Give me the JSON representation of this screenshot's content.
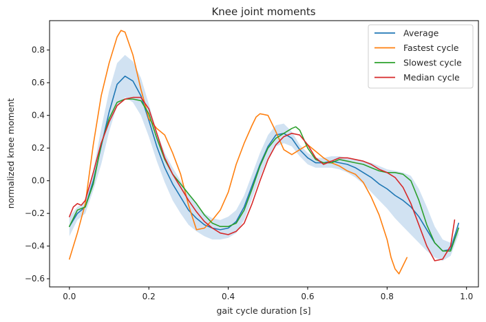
{
  "chart_data": {
    "type": "line",
    "title": "Knee joint moments",
    "xlabel": "gait cycle duration [s]",
    "ylabel": "normalized knee moment",
    "xlim": [
      -0.05,
      1.03
    ],
    "ylim": [
      -0.65,
      0.98
    ],
    "xticks": [
      "0.0",
      "0.2",
      "0.4",
      "0.6",
      "0.8",
      "1.0"
    ],
    "yticks": [
      "−0.6",
      "−0.4",
      "−0.2",
      "0.0",
      "0.2",
      "0.4",
      "0.6",
      "0.8"
    ],
    "grid": false,
    "legend_placement": "top-right",
    "band": {
      "color": "#c6dbef",
      "x": [
        0.0,
        0.02,
        0.04,
        0.06,
        0.08,
        0.1,
        0.12,
        0.14,
        0.16,
        0.18,
        0.2,
        0.22,
        0.24,
        0.26,
        0.28,
        0.3,
        0.32,
        0.34,
        0.36,
        0.38,
        0.4,
        0.42,
        0.44,
        0.46,
        0.48,
        0.5,
        0.52,
        0.54,
        0.56,
        0.58,
        0.6,
        0.62,
        0.64,
        0.66,
        0.68,
        0.7,
        0.72,
        0.74,
        0.76,
        0.78,
        0.8,
        0.82,
        0.84,
        0.86,
        0.88,
        0.9,
        0.92,
        0.94,
        0.96,
        0.98
      ],
      "upper": [
        -0.22,
        -0.16,
        -0.13,
        0.06,
        0.32,
        0.55,
        0.72,
        0.77,
        0.73,
        0.63,
        0.47,
        0.3,
        0.17,
        0.08,
        0.0,
        -0.08,
        -0.14,
        -0.2,
        -0.23,
        -0.24,
        -0.22,
        -0.18,
        -0.09,
        0.04,
        0.17,
        0.28,
        0.34,
        0.35,
        0.3,
        0.22,
        0.17,
        0.14,
        0.14,
        0.15,
        0.15,
        0.14,
        0.13,
        0.12,
        0.11,
        0.09,
        0.07,
        0.06,
        0.05,
        0.03,
        -0.05,
        -0.16,
        -0.28,
        -0.36,
        -0.38,
        -0.27
      ],
      "lower": [
        -0.34,
        -0.24,
        -0.2,
        -0.06,
        0.1,
        0.3,
        0.46,
        0.51,
        0.48,
        0.4,
        0.27,
        0.12,
        -0.01,
        -0.12,
        -0.2,
        -0.27,
        -0.31,
        -0.34,
        -0.36,
        -0.36,
        -0.35,
        -0.32,
        -0.24,
        -0.11,
        0.02,
        0.14,
        0.21,
        0.23,
        0.21,
        0.15,
        0.1,
        0.08,
        0.08,
        0.08,
        0.07,
        0.05,
        0.02,
        -0.02,
        -0.07,
        -0.12,
        -0.17,
        -0.23,
        -0.28,
        -0.33,
        -0.38,
        -0.43,
        -0.47,
        -0.49,
        -0.46,
        -0.33
      ]
    },
    "series": [
      {
        "name": "Average",
        "color": "#1f77b4",
        "x": [
          0.0,
          0.02,
          0.04,
          0.06,
          0.08,
          0.1,
          0.12,
          0.14,
          0.16,
          0.18,
          0.2,
          0.22,
          0.24,
          0.26,
          0.28,
          0.3,
          0.32,
          0.34,
          0.36,
          0.38,
          0.4,
          0.42,
          0.44,
          0.46,
          0.48,
          0.5,
          0.52,
          0.54,
          0.56,
          0.58,
          0.6,
          0.62,
          0.64,
          0.66,
          0.68,
          0.7,
          0.72,
          0.74,
          0.76,
          0.78,
          0.8,
          0.82,
          0.84,
          0.86,
          0.88,
          0.9,
          0.92,
          0.94,
          0.96,
          0.98
        ],
        "y": [
          -0.28,
          -0.2,
          -0.16,
          0.0,
          0.21,
          0.42,
          0.59,
          0.64,
          0.61,
          0.52,
          0.37,
          0.21,
          0.08,
          -0.02,
          -0.1,
          -0.18,
          -0.23,
          -0.27,
          -0.29,
          -0.3,
          -0.29,
          -0.25,
          -0.16,
          -0.03,
          0.1,
          0.21,
          0.28,
          0.29,
          0.26,
          0.19,
          0.14,
          0.11,
          0.11,
          0.12,
          0.11,
          0.1,
          0.08,
          0.05,
          0.02,
          -0.02,
          -0.05,
          -0.09,
          -0.12,
          -0.16,
          -0.22,
          -0.3,
          -0.38,
          -0.43,
          -0.42,
          -0.26
        ]
      },
      {
        "name": "Fastest cycle",
        "color": "#ff7f0e",
        "x": [
          0.0,
          0.02,
          0.04,
          0.06,
          0.08,
          0.1,
          0.12,
          0.13,
          0.14,
          0.16,
          0.18,
          0.2,
          0.22,
          0.24,
          0.26,
          0.28,
          0.3,
          0.32,
          0.34,
          0.36,
          0.38,
          0.4,
          0.42,
          0.44,
          0.46,
          0.47,
          0.48,
          0.5,
          0.52,
          0.54,
          0.56,
          0.58,
          0.6,
          0.62,
          0.64,
          0.66,
          0.68,
          0.7,
          0.72,
          0.74,
          0.76,
          0.78,
          0.8,
          0.81,
          0.82,
          0.83,
          0.85
        ],
        "y": [
          -0.48,
          -0.32,
          -0.14,
          0.22,
          0.52,
          0.72,
          0.88,
          0.92,
          0.91,
          0.77,
          0.56,
          0.38,
          0.32,
          0.28,
          0.17,
          0.04,
          -0.15,
          -0.3,
          -0.29,
          -0.24,
          -0.18,
          -0.07,
          0.1,
          0.23,
          0.34,
          0.39,
          0.41,
          0.4,
          0.3,
          0.19,
          0.16,
          0.19,
          0.22,
          0.18,
          0.14,
          0.11,
          0.09,
          0.06,
          0.04,
          -0.01,
          -0.1,
          -0.21,
          -0.36,
          -0.47,
          -0.54,
          -0.57,
          -0.47
        ]
      },
      {
        "name": "Slowest cycle",
        "color": "#2ca02c",
        "x": [
          0.0,
          0.02,
          0.04,
          0.06,
          0.08,
          0.1,
          0.12,
          0.14,
          0.16,
          0.18,
          0.2,
          0.22,
          0.24,
          0.26,
          0.28,
          0.3,
          0.32,
          0.34,
          0.36,
          0.38,
          0.4,
          0.42,
          0.44,
          0.46,
          0.48,
          0.5,
          0.52,
          0.54,
          0.56,
          0.57,
          0.58,
          0.6,
          0.62,
          0.64,
          0.66,
          0.68,
          0.7,
          0.72,
          0.74,
          0.76,
          0.78,
          0.8,
          0.82,
          0.84,
          0.86,
          0.88,
          0.9,
          0.92,
          0.94,
          0.96,
          0.98
        ],
        "y": [
          -0.28,
          -0.18,
          -0.16,
          -0.02,
          0.22,
          0.38,
          0.48,
          0.5,
          0.5,
          0.49,
          0.41,
          0.26,
          0.13,
          0.04,
          -0.02,
          -0.08,
          -0.14,
          -0.21,
          -0.26,
          -0.28,
          -0.28,
          -0.26,
          -0.18,
          -0.05,
          0.09,
          0.2,
          0.26,
          0.29,
          0.32,
          0.33,
          0.31,
          0.2,
          0.13,
          0.11,
          0.11,
          0.13,
          0.12,
          0.11,
          0.1,
          0.08,
          0.06,
          0.05,
          0.05,
          0.04,
          0.0,
          -0.12,
          -0.27,
          -0.38,
          -0.43,
          -0.43,
          -0.29
        ]
      },
      {
        "name": "Median cycle",
        "color": "#d62728",
        "x": [
          0.0,
          0.01,
          0.02,
          0.03,
          0.04,
          0.06,
          0.08,
          0.1,
          0.12,
          0.14,
          0.16,
          0.18,
          0.2,
          0.22,
          0.24,
          0.26,
          0.28,
          0.3,
          0.32,
          0.34,
          0.36,
          0.38,
          0.4,
          0.42,
          0.44,
          0.46,
          0.48,
          0.5,
          0.52,
          0.54,
          0.56,
          0.58,
          0.6,
          0.62,
          0.64,
          0.66,
          0.68,
          0.7,
          0.72,
          0.74,
          0.76,
          0.78,
          0.8,
          0.82,
          0.84,
          0.86,
          0.88,
          0.9,
          0.92,
          0.94,
          0.96,
          0.97
        ],
        "y": [
          -0.22,
          -0.16,
          -0.14,
          -0.15,
          -0.12,
          0.05,
          0.23,
          0.36,
          0.46,
          0.5,
          0.51,
          0.51,
          0.44,
          0.29,
          0.14,
          0.04,
          -0.04,
          -0.12,
          -0.19,
          -0.25,
          -0.29,
          -0.32,
          -0.33,
          -0.31,
          -0.26,
          -0.14,
          0.0,
          0.13,
          0.22,
          0.27,
          0.29,
          0.28,
          0.22,
          0.14,
          0.1,
          0.12,
          0.14,
          0.14,
          0.13,
          0.12,
          0.1,
          0.07,
          0.05,
          0.02,
          -0.04,
          -0.14,
          -0.27,
          -0.4,
          -0.49,
          -0.48,
          -0.4,
          -0.24
        ]
      }
    ]
  }
}
